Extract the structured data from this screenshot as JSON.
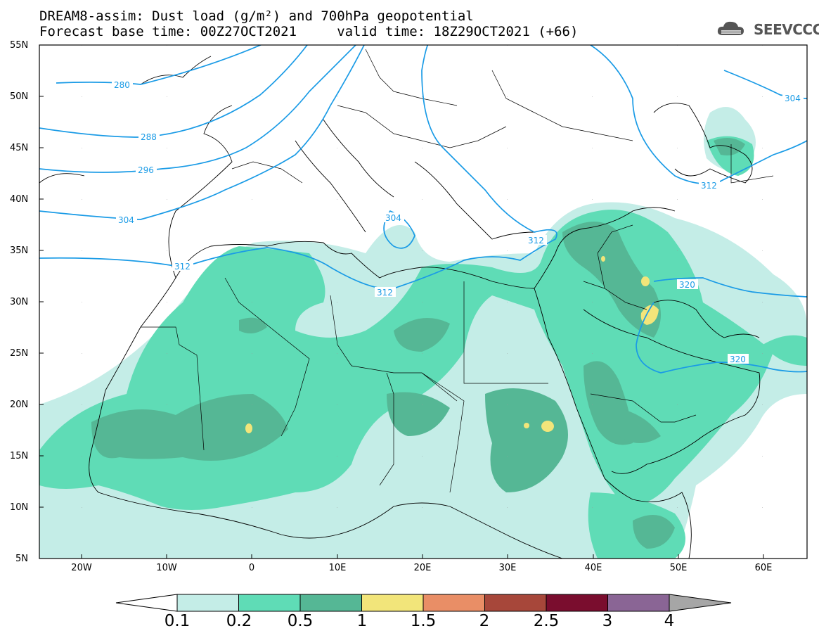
{
  "title_line1": "DREAM8-assim: Dust load (g/m²) and 700hPa geopotential",
  "title_line2": "Forecast base time: 00Z27OCT2021     valid time: 18Z29OCT2021 (+66)",
  "logo_text": "SEEVCCC",
  "map": {
    "lon_range": [
      -25,
      65
    ],
    "lat_range": [
      5,
      55
    ],
    "lat_labels": [
      "55N",
      "50N",
      "45N",
      "40N",
      "35N",
      "30N",
      "25N",
      "20N",
      "15N",
      "10N",
      "5N"
    ],
    "lon_labels": [
      "20W",
      "10W",
      "0",
      "10E",
      "20E",
      "30E",
      "40E",
      "50E",
      "60E"
    ],
    "contour_labels": [
      "280",
      "288",
      "296",
      "304",
      "304",
      "312",
      "312",
      "312",
      "312",
      "320",
      "320",
      "304"
    ],
    "dust_colors": {
      "0.1": "#c4ede7",
      "0.2": "#5fdcb6",
      "0.5": "#55b795",
      "1": "#f2e57a"
    },
    "contour_color": "#1a9be6"
  },
  "colorbar": {
    "labels": [
      "0.1",
      "0.2",
      "0.5",
      "1",
      "1.5",
      "2",
      "2.5",
      "3",
      "4"
    ],
    "colors": [
      "#c4ede7",
      "#5fdcb6",
      "#55b795",
      "#f2e57a",
      "#e98e66",
      "#a7473a",
      "#7a0d2e",
      "#8a6595"
    ],
    "below_color": "#ffffff",
    "above_color": "#a6a6a6"
  }
}
